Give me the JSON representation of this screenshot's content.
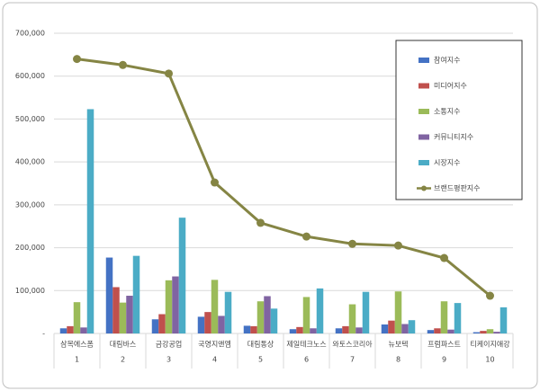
{
  "chart_data": {
    "type": "bar",
    "categories": [
      "삼목에스폼",
      "대림바스",
      "금강공업",
      "국영지앤엠",
      "대림통상",
      "제일테크노스",
      "와토스코리아",
      "뉴보텍",
      "프럼파스트",
      "티케이지애강"
    ],
    "ranks": [
      1,
      2,
      3,
      4,
      5,
      6,
      7,
      8,
      9,
      10
    ],
    "series": [
      {
        "name": "참여지수",
        "color": "#4472c4",
        "values": [
          12000,
          177000,
          33000,
          39000,
          18000,
          10000,
          12000,
          21000,
          8000,
          3000
        ]
      },
      {
        "name": "미디어지수",
        "color": "#c0504d",
        "values": [
          17000,
          108000,
          45000,
          50000,
          17000,
          15000,
          17000,
          30000,
          12000,
          6000
        ]
      },
      {
        "name": "소통지수",
        "color": "#9bbb59",
        "values": [
          73000,
          72000,
          124000,
          125000,
          75000,
          85000,
          68000,
          98000,
          75000,
          10000
        ]
      },
      {
        "name": "커뮤니티지수",
        "color": "#8064a2",
        "values": [
          14000,
          88000,
          133000,
          41000,
          87000,
          12000,
          14000,
          22000,
          9000,
          4000
        ]
      },
      {
        "name": "시장지수",
        "color": "#4bacc6",
        "values": [
          523000,
          181000,
          270000,
          97000,
          58000,
          105000,
          97000,
          31000,
          71000,
          61000
        ]
      },
      {
        "name": "브랜드평판지수",
        "color": "#858544",
        "type": "line",
        "values": [
          640000,
          626000,
          606000,
          352000,
          258000,
          226000,
          209000,
          205000,
          176000,
          88000
        ]
      }
    ],
    "ylim": [
      0,
      700000
    ],
    "yticks": [
      {
        "value": 0,
        "label": "-"
      },
      {
        "value": 100000,
        "label": "100,000"
      },
      {
        "value": 200000,
        "label": "200,000"
      },
      {
        "value": 300000,
        "label": "300,000"
      },
      {
        "value": 400000,
        "label": "400,000"
      },
      {
        "value": 500000,
        "label": "500,000"
      },
      {
        "value": 600000,
        "label": "600,000"
      },
      {
        "value": 700000,
        "label": "700,000"
      }
    ],
    "grid": true
  }
}
